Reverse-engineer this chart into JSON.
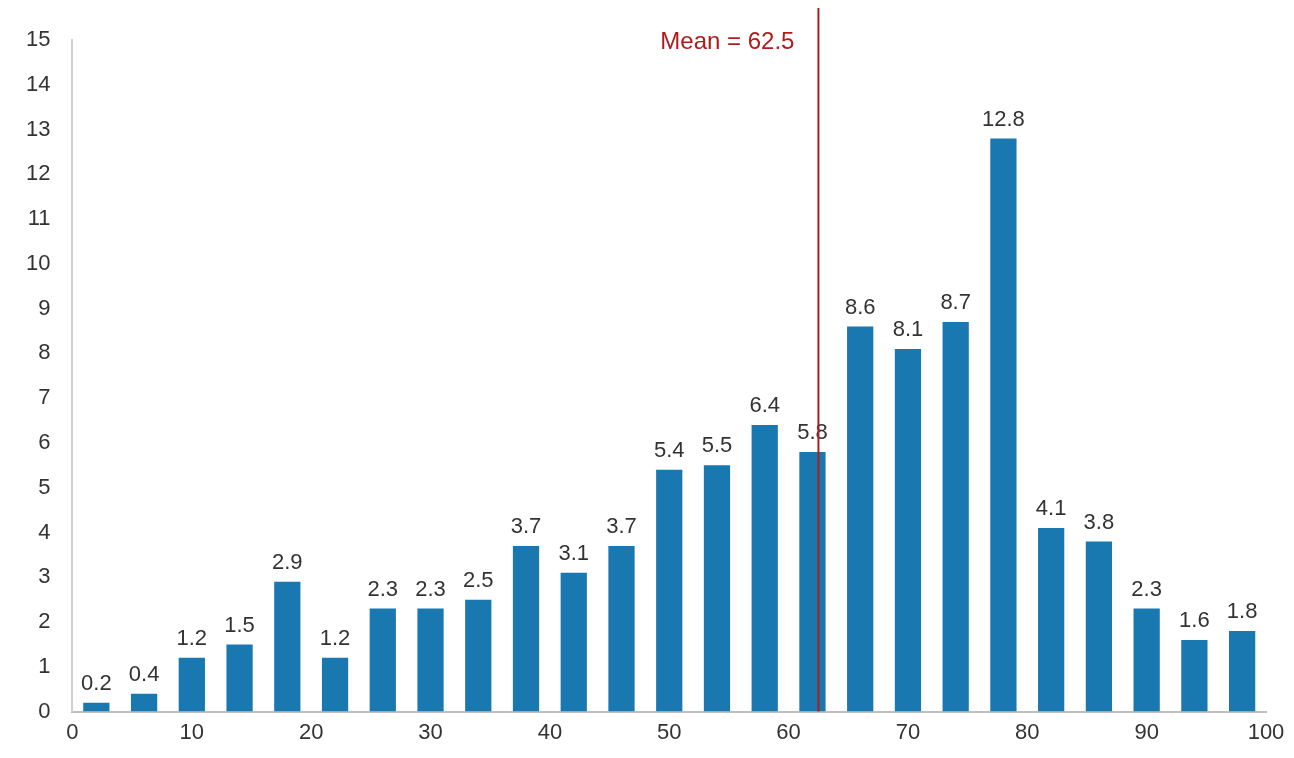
{
  "chart_data": {
    "type": "histogram",
    "bins": [
      0,
      4,
      8,
      12,
      16,
      20,
      24,
      28,
      32,
      36,
      40,
      44,
      48,
      52,
      56,
      60,
      64,
      68,
      72,
      76,
      80,
      84,
      88,
      92,
      96,
      100
    ],
    "values": [
      0.2,
      0.4,
      1.2,
      1.5,
      2.9,
      1.2,
      2.3,
      2.3,
      2.5,
      3.7,
      3.1,
      3.7,
      5.4,
      5.5,
      6.4,
      5.8,
      8.6,
      8.1,
      8.7,
      12.8,
      4.1,
      3.8,
      2.3,
      1.6,
      1.8
    ],
    "color": "#1a78b0",
    "data_labels": true,
    "xlim": [
      0,
      100
    ],
    "xticks": [
      0,
      10,
      20,
      30,
      40,
      50,
      60,
      70,
      80,
      90,
      100
    ],
    "ylim": [
      0,
      15
    ],
    "yticks": [
      0,
      1,
      2,
      3,
      4,
      5,
      6,
      7,
      8,
      9,
      10,
      11,
      12,
      13,
      14,
      15
    ],
    "grid": false,
    "legend": false,
    "ref_lines": [
      {
        "axis": "x",
        "value": 62.5,
        "label": "Mean = 62.5",
        "color": "#b01c1c"
      }
    ]
  }
}
